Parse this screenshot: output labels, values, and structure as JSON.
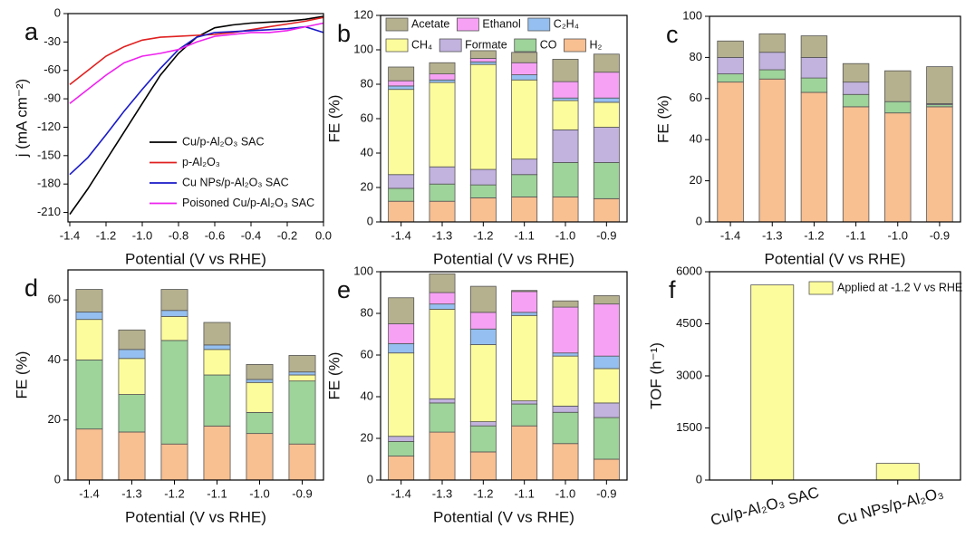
{
  "chart_data": [
    {
      "type": "line",
      "panel_label": "a",
      "xlabel": "Potential (V vs RHE)",
      "ylabel": "j (mA cm⁻²)",
      "x": [
        -1.4,
        -1.3,
        -1.2,
        -1.1,
        -1.0,
        -0.9,
        -0.8,
        -0.7,
        -0.6,
        -0.5,
        -0.4,
        -0.3,
        -0.2,
        -0.1,
        0.0
      ],
      "xlim": [
        -1.41,
        0
      ],
      "xticks": [
        -1.4,
        -1.2,
        {
          "value": -1,
          "label": "-1.0"
        },
        -0.8,
        -0.6,
        -0.4,
        -0.2,
        {
          "value": 0,
          "label": "0.0"
        }
      ],
      "ylim": [
        -220,
        0
      ],
      "yticks": [
        0,
        -30,
        -60,
        -90,
        -120,
        -150,
        -180,
        -210
      ],
      "legend": "lower right",
      "series": [
        {
          "name": "Cu/p-Al₂O₃ SAC",
          "color": "#000000",
          "values": [
            -212,
            -185,
            -155,
            -125,
            -95,
            -65,
            -42,
            -25,
            -15,
            -12,
            -10,
            -9,
            -8,
            -6,
            -3
          ]
        },
        {
          "name": "p-Al₂O₃",
          "color": "#e02020",
          "values": [
            -75,
            -60,
            -45,
            -35,
            -28,
            -25,
            -24,
            -23,
            -22,
            -20,
            -17,
            -14,
            -11,
            -8,
            -4
          ]
        },
        {
          "name": "Cu NPs/p-Al₂O₃ SAC",
          "color": "#1a1ac8",
          "values": [
            -170,
            -152,
            -128,
            -103,
            -80,
            -58,
            -38,
            -25,
            -20,
            -19,
            -18,
            -17,
            -16,
            -14,
            -20
          ]
        },
        {
          "name": "Poisoned Cu/p-Al₂O₃ SAC",
          "color": "#ee22ee",
          "values": [
            -95,
            -80,
            -65,
            -52,
            -45,
            -42,
            -38,
            -30,
            -24,
            -22,
            -20,
            -20,
            -18,
            -14,
            -10
          ]
        }
      ]
    },
    {
      "type": "bar",
      "stacked": true,
      "panel_label": "b",
      "xlabel": "Potential (V vs RHE)",
      "ylabel": "FE (%)",
      "categories": [
        "-1.4",
        "-1.3",
        "-1.2",
        "-1.1",
        "-1.0",
        "-0.9"
      ],
      "ylim": [
        0,
        120
      ],
      "yticks": [
        0,
        20,
        40,
        60,
        80,
        100,
        120
      ],
      "legend": "upper center",
      "series": [
        {
          "name": "H₂",
          "color": "#f8bf91",
          "values": [
            12,
            12,
            14,
            14.5,
            14.5,
            13.5
          ]
        },
        {
          "name": "CO",
          "color": "#9ed39a",
          "values": [
            7.5,
            10,
            7.5,
            13,
            20,
            21
          ]
        },
        {
          "name": "Formate",
          "color": "#c1b2de",
          "values": [
            8,
            10,
            9,
            9,
            19,
            20.5
          ]
        },
        {
          "name": "CH₄",
          "color": "#fdfc9c",
          "values": [
            49.5,
            49,
            61,
            46,
            17,
            14.5
          ]
        },
        {
          "name": "C₂H₄",
          "color": "#94bff0",
          "values": [
            2,
            1.5,
            1.5,
            3,
            1.5,
            2.5
          ]
        },
        {
          "name": "Ethanol",
          "color": "#f7a1f5",
          "values": [
            3,
            3.5,
            2,
            7,
            9.5,
            15
          ]
        },
        {
          "name": "Acetate",
          "color": "#b5b08e",
          "values": [
            8,
            6.5,
            4.5,
            6,
            13,
            10.5
          ]
        }
      ]
    },
    {
      "type": "bar",
      "stacked": true,
      "panel_label": "c",
      "xlabel": "Potential (V vs RHE)",
      "ylabel": "FE (%)",
      "categories": [
        "-1.4",
        "-1.3",
        "-1.2",
        "-1.1",
        "-1.0",
        "-0.9"
      ],
      "ylim": [
        0,
        100
      ],
      "yticks": [
        0,
        20,
        40,
        60,
        80,
        100
      ],
      "series": [
        {
          "color": "#f8bf91",
          "values": [
            68,
            69.5,
            63,
            56,
            53,
            56
          ]
        },
        {
          "color": "#9ed39a",
          "values": [
            4,
            4.5,
            7,
            6,
            5.5,
            1
          ]
        },
        {
          "color": "#c1b2de",
          "values": [
            8,
            8.5,
            10,
            6,
            0,
            0.5
          ]
        },
        {
          "color": "#b5b08e",
          "values": [
            8,
            9,
            10.5,
            9,
            15,
            18
          ]
        }
      ]
    },
    {
      "type": "bar",
      "stacked": true,
      "panel_label": "d",
      "xlabel": "Potential (V vs RHE)",
      "ylabel": "FE (%)",
      "categories": [
        "-1.4",
        "-1.3",
        "-1.2",
        "-1.1",
        "-1.0",
        "-0.9"
      ],
      "ylim": [
        0,
        70
      ],
      "yticks": [
        0,
        20,
        40,
        60
      ],
      "series": [
        {
          "color": "#f8bf91",
          "values": [
            17,
            16,
            12,
            18,
            15.5,
            12
          ]
        },
        {
          "color": "#9ed39a",
          "values": [
            23,
            12.5,
            34.5,
            17,
            7,
            21
          ]
        },
        {
          "color": "#fdfc9c",
          "values": [
            13.5,
            12,
            8,
            8.5,
            10,
            2
          ]
        },
        {
          "color": "#94bff0",
          "values": [
            2.5,
            3,
            2,
            1.5,
            1,
            1
          ]
        },
        {
          "color": "#b5b08e",
          "values": [
            7.5,
            6.5,
            7,
            7.5,
            5,
            5.5
          ]
        }
      ]
    },
    {
      "type": "bar",
      "stacked": true,
      "panel_label": "e",
      "xlabel": "Potential (V vs RHE)",
      "ylabel": "FE (%)",
      "categories": [
        "-1.4",
        "-1.3",
        "-1.2",
        "-1.1",
        "-1.0",
        "-0.9"
      ],
      "ylim": [
        0,
        100
      ],
      "yticks": [
        0,
        20,
        40,
        60,
        80,
        100
      ],
      "series": [
        {
          "color": "#f8bf91",
          "values": [
            11.5,
            23,
            13.5,
            26,
            17.5,
            10
          ]
        },
        {
          "color": "#9ed39a",
          "values": [
            7,
            14,
            12.5,
            10.5,
            15,
            20
          ]
        },
        {
          "color": "#c1b2de",
          "values": [
            2.5,
            2,
            2,
            1.5,
            3,
            7
          ]
        },
        {
          "color": "#fdfc9c",
          "values": [
            40,
            43,
            37,
            41,
            24,
            16.5
          ]
        },
        {
          "color": "#94bff0",
          "values": [
            4.5,
            2.5,
            7.5,
            1.5,
            1.5,
            6
          ]
        },
        {
          "color": "#f7a1f5",
          "values": [
            9.5,
            5.5,
            8,
            10,
            22,
            25
          ]
        },
        {
          "color": "#b5b08e",
          "values": [
            12.5,
            9,
            12.5,
            0.5,
            3,
            4
          ]
        }
      ]
    },
    {
      "type": "bar",
      "panel_label": "f",
      "ylabel": "TOF (h⁻¹)",
      "categories": [
        "Cu/p-Al₂O₃ SAC",
        "Cu NPs/p-Al₂O₃"
      ],
      "ylim": [
        0,
        6000
      ],
      "yticks": [
        0,
        1500,
        3000,
        4500,
        6000
      ],
      "legend": "upper right",
      "series": [
        {
          "name": "Applied at -1.2 V vs RHE",
          "color": "#fdfc9c",
          "values": [
            5620,
            480
          ]
        }
      ]
    }
  ]
}
